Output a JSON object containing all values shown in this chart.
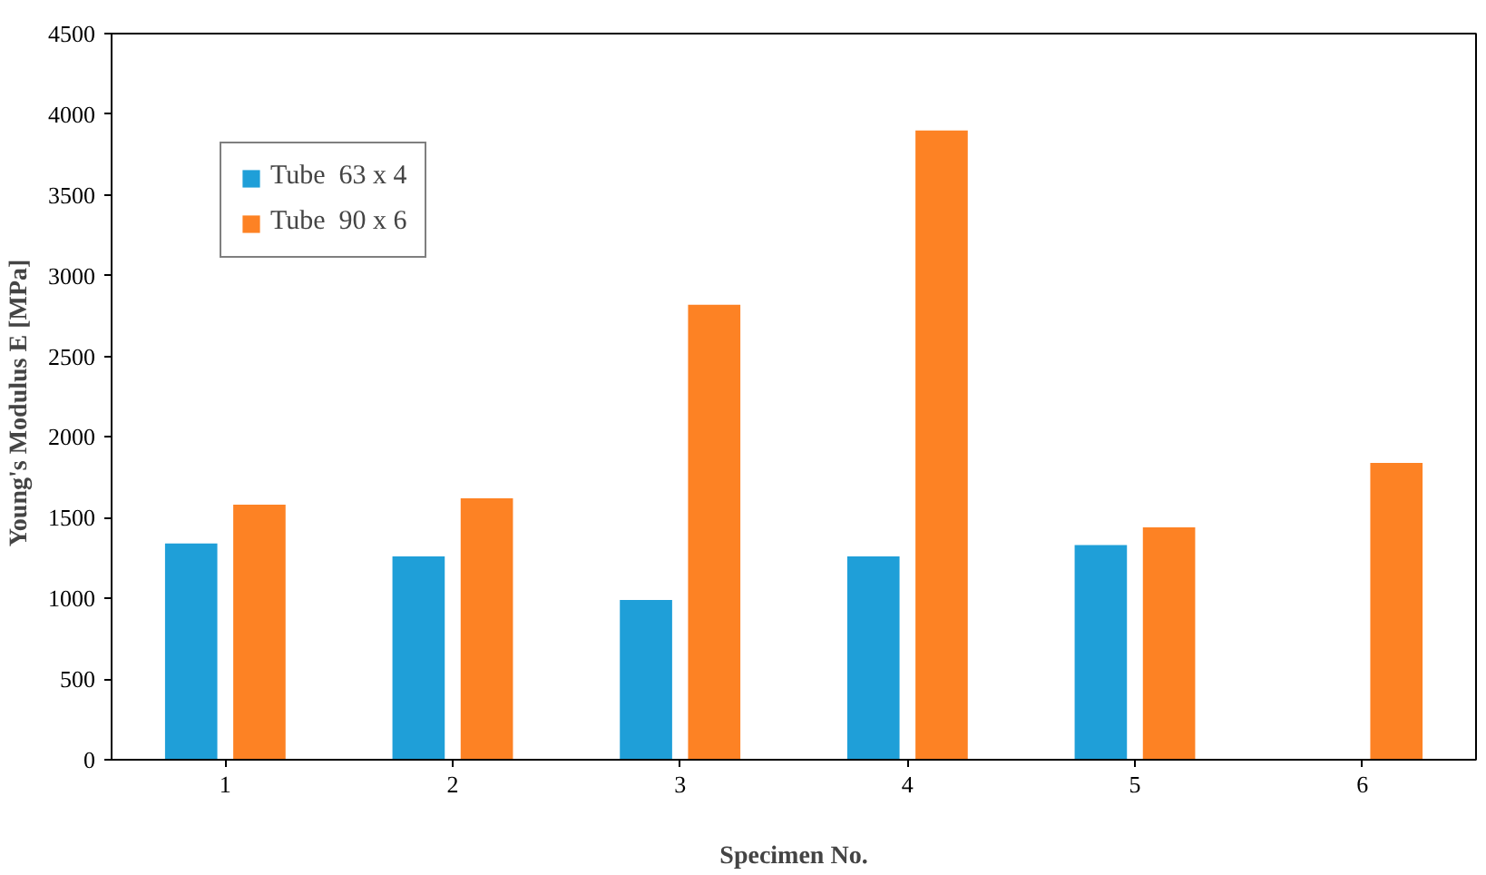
{
  "chart_data": {
    "type": "bar",
    "xlabel": "Specimen No.",
    "ylabel": "Young's  Modulus  E [MPa]",
    "categories": [
      "1",
      "2",
      "3",
      "4",
      "5",
      "6"
    ],
    "series": [
      {
        "name": "Tube  63 x 4",
        "color": "#1f9fd8",
        "values": [
          1340,
          1260,
          990,
          1260,
          1330,
          null
        ]
      },
      {
        "name": "Tube  90 x 6",
        "color": "#fd8224",
        "values": [
          1580,
          1620,
          2820,
          3900,
          1440,
          1840
        ]
      }
    ],
    "ylim": [
      0,
      4500
    ],
    "yticks": [
      0,
      500,
      1000,
      1500,
      2000,
      2500,
      3000,
      3500,
      4000,
      4500
    ],
    "grid": false,
    "legend": "top left"
  }
}
